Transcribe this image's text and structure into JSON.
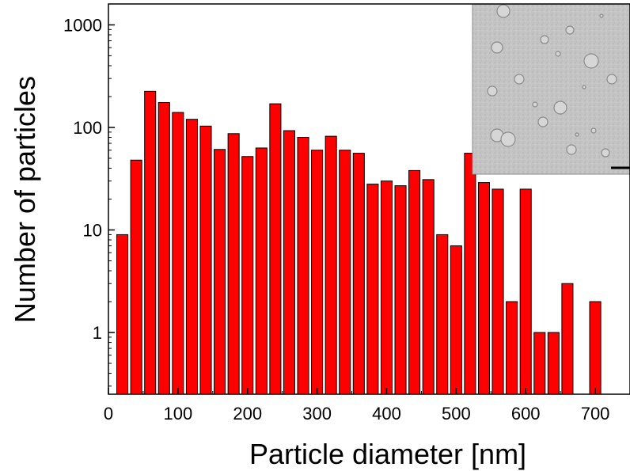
{
  "chart_data": {
    "type": "bar",
    "xlabel": "Particle diameter [nm]",
    "ylabel": "Number of particles",
    "y_scale": "log",
    "xlim": [
      0,
      750
    ],
    "ylim": [
      0.25,
      1600
    ],
    "x_ticks": [
      0,
      100,
      200,
      300,
      400,
      500,
      600,
      700
    ],
    "x_tick_labels": [
      "0",
      "100",
      "200",
      "300",
      "400",
      "500",
      "600",
      "700"
    ],
    "y_ticks": [
      1,
      10,
      100,
      1000
    ],
    "y_tick_labels": [
      "1",
      "10",
      "100",
      "1000"
    ],
    "bar_width": 16,
    "bar_color": "#ff0000",
    "bars": [
      {
        "x": 20,
        "y": 9
      },
      {
        "x": 40,
        "y": 48
      },
      {
        "x": 60,
        "y": 225
      },
      {
        "x": 80,
        "y": 175
      },
      {
        "x": 100,
        "y": 140
      },
      {
        "x": 120,
        "y": 120
      },
      {
        "x": 140,
        "y": 103
      },
      {
        "x": 160,
        "y": 61
      },
      {
        "x": 180,
        "y": 87
      },
      {
        "x": 200,
        "y": 52
      },
      {
        "x": 220,
        "y": 63
      },
      {
        "x": 240,
        "y": 170
      },
      {
        "x": 260,
        "y": 93
      },
      {
        "x": 280,
        "y": 80
      },
      {
        "x": 300,
        "y": 60
      },
      {
        "x": 320,
        "y": 82
      },
      {
        "x": 340,
        "y": 60
      },
      {
        "x": 360,
        "y": 56
      },
      {
        "x": 380,
        "y": 28
      },
      {
        "x": 400,
        "y": 30
      },
      {
        "x": 420,
        "y": 27
      },
      {
        "x": 440,
        "y": 38
      },
      {
        "x": 460,
        "y": 31
      },
      {
        "x": 480,
        "y": 9
      },
      {
        "x": 500,
        "y": 7
      },
      {
        "x": 520,
        "y": 56
      },
      {
        "x": 540,
        "y": 29
      },
      {
        "x": 560,
        "y": 25
      },
      {
        "x": 580,
        "y": 2
      },
      {
        "x": 600,
        "y": 25
      },
      {
        "x": 620,
        "y": 1
      },
      {
        "x": 640,
        "y": 1
      },
      {
        "x": 660,
        "y": 3
      },
      {
        "x": 700,
        "y": 2
      }
    ],
    "grid": false,
    "inset": "micrograph of particles with scale bar, top-right"
  }
}
